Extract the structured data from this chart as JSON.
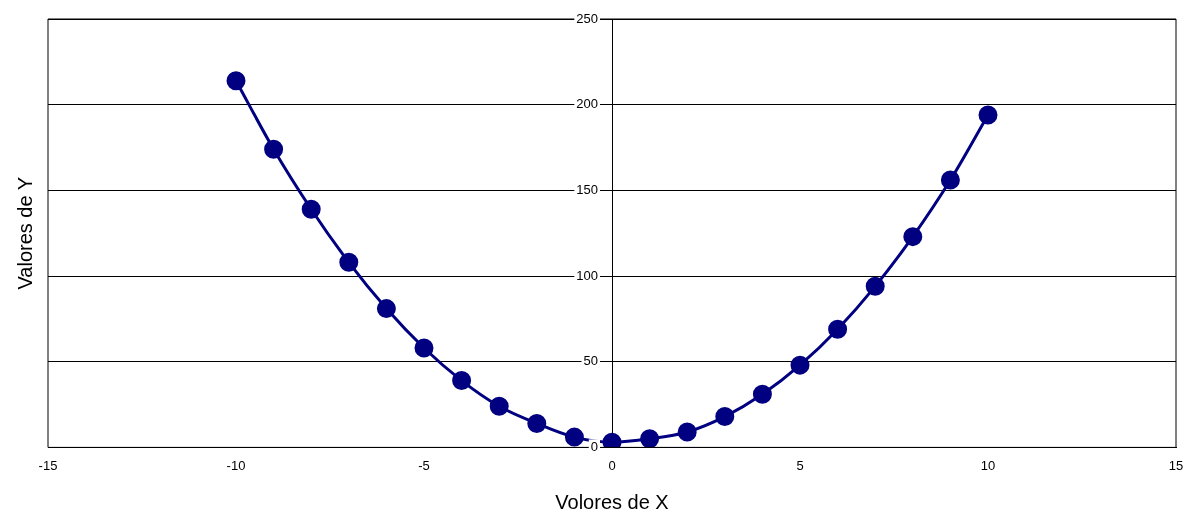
{
  "chart_data": {
    "type": "line",
    "xlabel": "Volores de X",
    "ylabel": "Valores de Y",
    "x": [
      -10,
      -9,
      -8,
      -7,
      -6,
      -5,
      -4,
      -3,
      -2,
      -1,
      0,
      1,
      2,
      3,
      4,
      5,
      6,
      7,
      8,
      9,
      10
    ],
    "series": [
      {
        "color": "#000080",
        "values": [
          214,
          174,
          139,
          108,
          81,
          58,
          39,
          24,
          14,
          6,
          3,
          5,
          9,
          18,
          31,
          48,
          69,
          94,
          123,
          156,
          194
        ]
      }
    ],
    "xlim": [
      -15,
      15
    ],
    "xticks": [
      -15,
      -10,
      -5,
      0,
      5,
      10,
      15
    ],
    "ylim": [
      0,
      250
    ],
    "yticks": [
      0,
      50,
      100,
      150,
      200,
      250
    ],
    "grid": "y",
    "legend": false,
    "marker": "circle",
    "line_style": "solid"
  }
}
